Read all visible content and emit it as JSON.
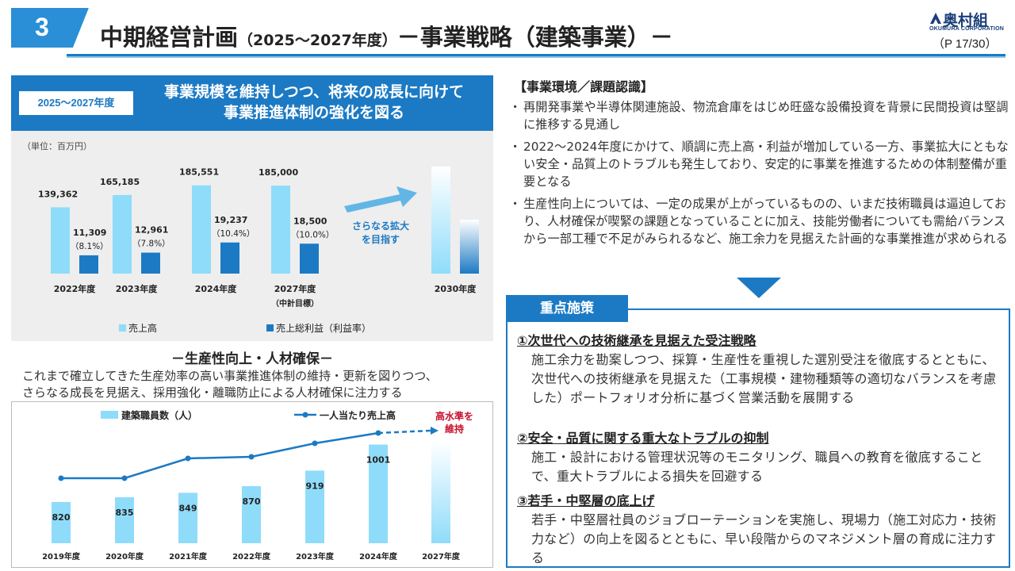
{
  "header": {
    "section_number": "3",
    "title_main": "中期経営計画",
    "title_period": "（2025～2027年度）",
    "title_sub": "－事業戦略（建築事業）－",
    "logo_name": "奥村組",
    "logo_en": "OKUMURA CORPORATION",
    "page": "（P 17/30）"
  },
  "colors": {
    "accent_blue": "#1c7ac4",
    "light_blue": "#8fdcfa",
    "dark_red": "#c8102e"
  },
  "left_panel": {
    "period_tag": "2025～2027年度",
    "headline_line1": "事業規模を維持しつつ、将来の成長に向けて",
    "headline_line2": "事業推進体制の強化を図る",
    "unit": "（単位：百万円）",
    "growth_label_1": "さらなる拡大",
    "growth_label_2": "を目指す"
  },
  "chart_data": [
    {
      "type": "bar",
      "categories": [
        "2022年度",
        "2023年度",
        "2024年度",
        "2027年度",
        "2030年度"
      ],
      "category_note": {
        "2027年度": "（中計目標）"
      },
      "series": [
        {
          "name": "売上高",
          "values": [
            139362,
            165185,
            185551,
            185000,
            null
          ],
          "labels": [
            "139,362",
            "165,185",
            "185,551",
            "185,000",
            ""
          ]
        },
        {
          "name": "売上総利益（利益率）",
          "values": [
            11309,
            12961,
            19237,
            18500,
            null
          ],
          "labels": [
            "11,309",
            "12,961",
            "19,237",
            "18,500",
            ""
          ],
          "rates": [
            "（8.1%）",
            "（7.8%）",
            "（10.4%）",
            "（10.0%）",
            ""
          ]
        }
      ],
      "legend": [
        "売上高",
        "売上総利益（利益率）"
      ],
      "legend_position": "bottom"
    },
    {
      "type": "bar",
      "categories": [
        "2019年度",
        "2020年度",
        "2021年度",
        "2022年度",
        "2023年度",
        "2024年度",
        "2027年度"
      ],
      "series": [
        {
          "name": "建築職員数（人）",
          "values": [
            820,
            835,
            849,
            870,
            919,
            1001,
            null
          ]
        },
        {
          "name": "一人当たり売上高",
          "values": [
            null,
            null,
            null,
            null,
            null,
            null,
            null
          ]
        }
      ],
      "legend": [
        "建築職員数（人）",
        "一人当たり売上高"
      ],
      "legend_position": "top",
      "annotation_line1": "高水準を",
      "annotation_line2": "維持"
    }
  ],
  "productivity": {
    "title": "－生産性向上・人材確保－",
    "desc_line1": "これまで確立してきた生産効率の高い事業推進体制の維持・更新を図りつつ、",
    "desc_line2": "さらなる成長を見据え、採用強化・離職防止による人材確保に注力する"
  },
  "environment": {
    "title": "【事業環境／課題認識】",
    "items": [
      "再開発事業や半導体関連施設、物流倉庫をはじめ旺盛な設備投資を背景に民間投資は堅調に推移する見通し",
      "2022～2024年度にかけて、順調に売上高・利益が増加している一方、事業拡大にともない安全・品質上のトラブルも発生しており、安定的に事業を推進するための体制整備が重要となる",
      "生産性向上については、一定の成果が上がっているものの、いまだ技術職員は逼迫しており、人材確保が喫緊の課題となっていることに加え、技能労働者についても需給バランスから一部工種で不足がみられるなど、施工余力を見据えた計画的な事業推進が求められる"
    ]
  },
  "key_measures": {
    "tab": "重点施策",
    "items": [
      {
        "heading": "①次世代への技術継承を見据えた受注戦略",
        "body": "施工余力を勘案しつつ、採算・生産性を重視した選別受注を徹底するとともに、次世代への技術継承を見据えた（工事規模・建物種類等の適切なバランスを考慮した）ポートフォリオ分析に基づく営業活動を展開する"
      },
      {
        "heading": "②安全・品質に関する重大なトラブルの抑制",
        "body": "施工・設計における管理状況等のモニタリング、職員への教育を徹底することで、重大トラブルによる損失を回避する"
      },
      {
        "heading": "③若手・中堅層の底上げ",
        "body": "若手・中堅層社員のジョブローテーションを実施し、現場力（施工対応力・技術力など）の向上を図るとともに、早い段階からのマネジメント層の育成に注力する"
      }
    ]
  }
}
